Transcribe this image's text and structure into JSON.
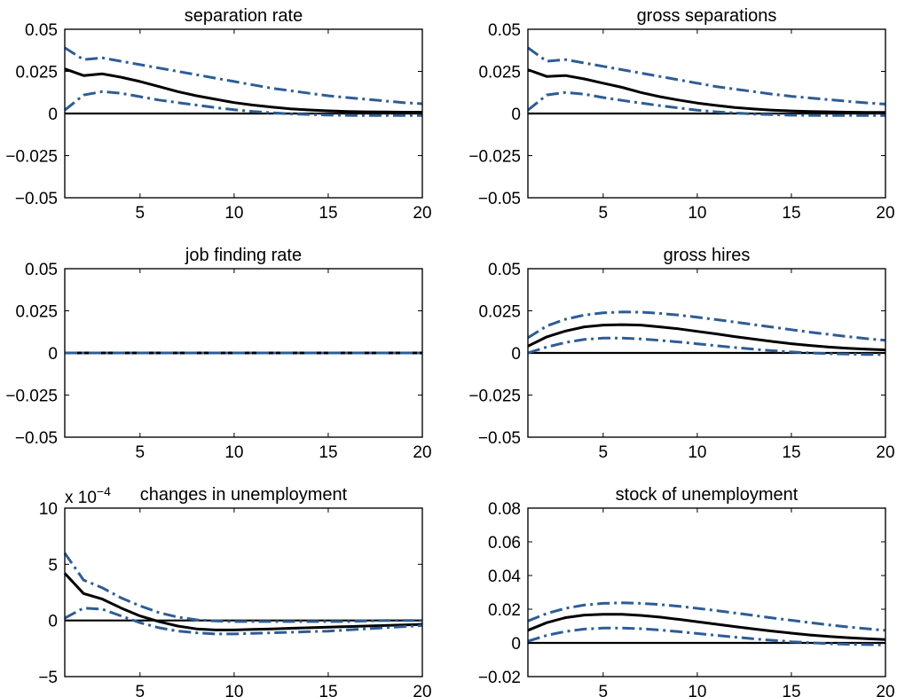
{
  "chart_data": [
    {
      "type": "line",
      "title": "separation rate",
      "xlim": [
        1,
        20
      ],
      "ylim": [
        -0.05,
        0.05
      ],
      "xticks": [
        5,
        10,
        15,
        20
      ],
      "yticks": [
        -0.05,
        -0.025,
        0,
        0.025,
        0.05
      ],
      "ytick_labels": [
        "−0.05",
        "−0.025",
        "0",
        "0.025",
        "0.05"
      ],
      "x": [
        1,
        2,
        3,
        4,
        5,
        6,
        7,
        8,
        9,
        10,
        11,
        12,
        13,
        14,
        15,
        16,
        17,
        18,
        19,
        20
      ],
      "series": [
        {
          "role": "point",
          "values": [
            0.0265,
            0.0225,
            0.0235,
            0.0215,
            0.019,
            0.016,
            0.013,
            0.0105,
            0.0085,
            0.0065,
            0.005,
            0.0038,
            0.0028,
            0.0021,
            0.0016,
            0.0012,
            0.001,
            0.0009,
            0.0008,
            0.0008
          ]
        },
        {
          "role": "upper",
          "values": [
            0.039,
            0.032,
            0.033,
            0.031,
            0.029,
            0.027,
            0.025,
            0.023,
            0.021,
            0.019,
            0.017,
            0.015,
            0.0135,
            0.012,
            0.0105,
            0.0095,
            0.0085,
            0.0075,
            0.0065,
            0.0058
          ]
        },
        {
          "role": "lower",
          "values": [
            0.002,
            0.011,
            0.013,
            0.012,
            0.01,
            0.008,
            0.0065,
            0.005,
            0.0035,
            0.0022,
            0.0012,
            0.0004,
            -0.0002,
            -0.0006,
            -0.0009,
            -0.0011,
            -0.0012,
            -0.0012,
            -0.0012,
            -0.0012
          ]
        }
      ]
    },
    {
      "type": "line",
      "title": "gross separations",
      "xlim": [
        1,
        20
      ],
      "ylim": [
        -0.05,
        0.05
      ],
      "xticks": [
        5,
        10,
        15,
        20
      ],
      "yticks": [
        -0.05,
        -0.025,
        0,
        0.025,
        0.05
      ],
      "ytick_labels": [
        "−0.05",
        "−0.025",
        "0",
        "0.025",
        "0.05"
      ],
      "x": [
        1,
        2,
        3,
        4,
        5,
        6,
        7,
        8,
        9,
        10,
        11,
        12,
        13,
        14,
        15,
        16,
        17,
        18,
        19,
        20
      ],
      "series": [
        {
          "role": "point",
          "values": [
            0.026,
            0.022,
            0.0225,
            0.0205,
            0.018,
            0.0155,
            0.0125,
            0.01,
            0.008,
            0.0062,
            0.0048,
            0.0036,
            0.0027,
            0.002,
            0.0015,
            0.0012,
            0.001,
            0.0008,
            0.0007,
            0.0007
          ]
        },
        {
          "role": "upper",
          "values": [
            0.039,
            0.031,
            0.032,
            0.03,
            0.028,
            0.026,
            0.024,
            0.022,
            0.02,
            0.018,
            0.016,
            0.0145,
            0.013,
            0.0115,
            0.0102,
            0.0092,
            0.0082,
            0.0072,
            0.0063,
            0.0056
          ]
        },
        {
          "role": "lower",
          "values": [
            0.002,
            0.011,
            0.0125,
            0.0115,
            0.0095,
            0.0078,
            0.0062,
            0.0047,
            0.0033,
            0.002,
            0.001,
            0.0003,
            -0.0003,
            -0.0007,
            -0.001,
            -0.0011,
            -0.0012,
            -0.0012,
            -0.0012,
            -0.0012
          ]
        }
      ]
    },
    {
      "type": "line",
      "title": "job finding rate",
      "xlim": [
        1,
        20
      ],
      "ylim": [
        -0.05,
        0.05
      ],
      "xticks": [
        5,
        10,
        15,
        20
      ],
      "yticks": [
        -0.05,
        -0.025,
        0,
        0.025,
        0.05
      ],
      "ytick_labels": [
        "−0.05",
        "−0.025",
        "0",
        "0.025",
        "0.05"
      ],
      "x": [
        1,
        2,
        3,
        4,
        5,
        6,
        7,
        8,
        9,
        10,
        11,
        12,
        13,
        14,
        15,
        16,
        17,
        18,
        19,
        20
      ],
      "series": [
        {
          "role": "point",
          "values": [
            0,
            0,
            0,
            0,
            0,
            0,
            0,
            0,
            0,
            0,
            0,
            0,
            0,
            0,
            0,
            0,
            0,
            0,
            0,
            0
          ]
        },
        {
          "role": "upper",
          "values": [
            0,
            0,
            0,
            0,
            0,
            0,
            0,
            0,
            0,
            0,
            0,
            0,
            0,
            0,
            0,
            0,
            0,
            0,
            0,
            0
          ]
        },
        {
          "role": "lower",
          "values": [
            0,
            0,
            0,
            0,
            0,
            0,
            0,
            0,
            0,
            0,
            0,
            0,
            0,
            0,
            0,
            0,
            0,
            0,
            0,
            0
          ]
        }
      ]
    },
    {
      "type": "line",
      "title": "gross hires",
      "xlim": [
        1,
        20
      ],
      "ylim": [
        -0.05,
        0.05
      ],
      "xticks": [
        5,
        10,
        15,
        20
      ],
      "yticks": [
        -0.05,
        -0.025,
        0,
        0.025,
        0.05
      ],
      "ytick_labels": [
        "−0.05",
        "−0.025",
        "0",
        "0.025",
        "0.05"
      ],
      "x": [
        1,
        2,
        3,
        4,
        5,
        6,
        7,
        8,
        9,
        10,
        11,
        12,
        13,
        14,
        15,
        16,
        17,
        18,
        19,
        20
      ],
      "series": [
        {
          "role": "point",
          "values": [
            0.004,
            0.0095,
            0.013,
            0.0155,
            0.0165,
            0.0168,
            0.0165,
            0.0155,
            0.0143,
            0.0128,
            0.0113,
            0.0097,
            0.0082,
            0.0068,
            0.0055,
            0.0044,
            0.0035,
            0.0028,
            0.0022,
            0.0018
          ]
        },
        {
          "role": "upper",
          "values": [
            0.009,
            0.016,
            0.02,
            0.0225,
            0.0238,
            0.0243,
            0.0242,
            0.0235,
            0.0225,
            0.0212,
            0.0198,
            0.0183,
            0.0168,
            0.0153,
            0.0138,
            0.0123,
            0.011,
            0.0097,
            0.0085,
            0.0075
          ]
        },
        {
          "role": "lower",
          "values": [
            0,
            0.0035,
            0.0062,
            0.008,
            0.0088,
            0.0088,
            0.0083,
            0.0075,
            0.0065,
            0.0054,
            0.0043,
            0.0032,
            0.0022,
            0.0013,
            0.0006,
            0,
            -0.0004,
            -0.0007,
            -0.0009,
            -0.001
          ]
        }
      ]
    },
    {
      "type": "line",
      "title": "changes in unemployment",
      "y_scale_label": "x 10",
      "y_scale_exponent": "−4",
      "xlim": [
        1,
        20
      ],
      "ylim": [
        -5,
        10
      ],
      "xticks": [
        5,
        10,
        15,
        20
      ],
      "yticks": [
        -5,
        0,
        5,
        10
      ],
      "ytick_labels": [
        "−5",
        "0",
        "5",
        "10"
      ],
      "x": [
        1,
        2,
        3,
        4,
        5,
        6,
        7,
        8,
        9,
        10,
        11,
        12,
        13,
        14,
        15,
        16,
        17,
        18,
        19,
        20
      ],
      "series": [
        {
          "role": "point",
          "values": [
            4.2,
            2.4,
            1.9,
            1.1,
            0.4,
            -0.1,
            -0.5,
            -0.75,
            -0.85,
            -0.85,
            -0.8,
            -0.75,
            -0.7,
            -0.65,
            -0.6,
            -0.55,
            -0.5,
            -0.45,
            -0.4,
            -0.35
          ]
        },
        {
          "role": "upper",
          "values": [
            6,
            3.6,
            2.9,
            2,
            1.3,
            0.7,
            0.3,
            0.05,
            -0.05,
            -0.1,
            -0.1,
            -0.1,
            -0.1,
            -0.1,
            -0.1,
            -0.1,
            -0.05,
            0,
            0,
            0
          ]
        },
        {
          "role": "lower",
          "values": [
            0.2,
            1.1,
            1,
            0.4,
            -0.2,
            -0.65,
            -0.95,
            -1.1,
            -1.2,
            -1.2,
            -1.15,
            -1.1,
            -1.05,
            -1,
            -0.95,
            -0.85,
            -0.75,
            -0.65,
            -0.55,
            -0.45
          ]
        }
      ]
    },
    {
      "type": "line",
      "title": "stock of unemployment",
      "xlim": [
        1,
        20
      ],
      "ylim": [
        -0.02,
        0.08
      ],
      "xticks": [
        5,
        10,
        15,
        20
      ],
      "yticks": [
        -0.02,
        0,
        0.02,
        0.04,
        0.06,
        0.08
      ],
      "ytick_labels": [
        "−0.02",
        "0",
        "0.02",
        "0.04",
        "0.06",
        "0.08"
      ],
      "x": [
        1,
        2,
        3,
        4,
        5,
        6,
        7,
        8,
        9,
        10,
        11,
        12,
        13,
        14,
        15,
        16,
        17,
        18,
        19,
        20
      ],
      "series": [
        {
          "role": "point",
          "values": [
            0.0075,
            0.012,
            0.015,
            0.0165,
            0.017,
            0.017,
            0.0163,
            0.0153,
            0.014,
            0.0126,
            0.0111,
            0.0097,
            0.0083,
            0.007,
            0.0058,
            0.0047,
            0.0038,
            0.0031,
            0.0025,
            0.002
          ]
        },
        {
          "role": "upper",
          "values": [
            0.013,
            0.0175,
            0.0205,
            0.0225,
            0.0235,
            0.0238,
            0.0235,
            0.0228,
            0.0218,
            0.0205,
            0.0192,
            0.0178,
            0.0163,
            0.0148,
            0.0134,
            0.012,
            0.0107,
            0.0095,
            0.0084,
            0.0074
          ]
        },
        {
          "role": "lower",
          "values": [
            0.001,
            0.0045,
            0.0068,
            0.0082,
            0.0088,
            0.0088,
            0.0084,
            0.0077,
            0.0067,
            0.0056,
            0.0045,
            0.0034,
            0.0024,
            0.0015,
            0.0007,
            0.0001,
            -0.0004,
            -0.0008,
            -0.001,
            -0.0012
          ]
        }
      ]
    }
  ]
}
